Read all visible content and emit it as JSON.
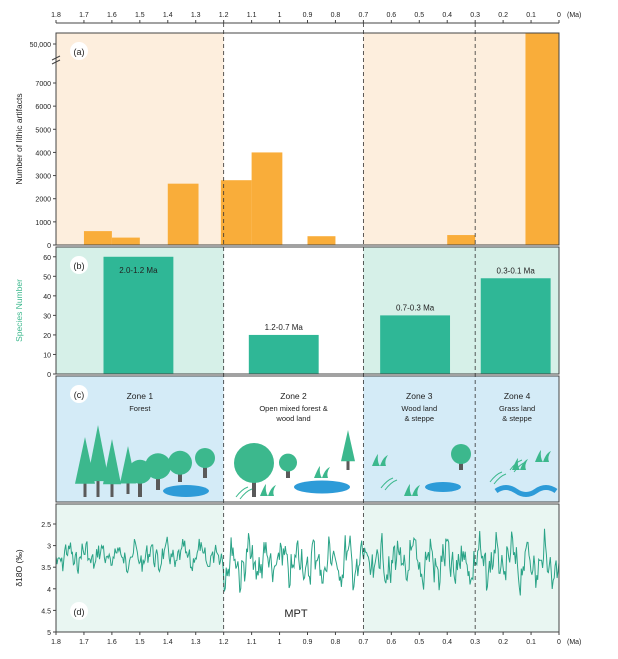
{
  "figure": {
    "x_axis": {
      "ticks": [
        "1.8",
        "1.7",
        "1.6",
        "1.5",
        "1.4",
        "1.3",
        "1.2",
        "1.1",
        "1",
        "0.9",
        "0.8",
        "0.7",
        "0.6",
        "0.5",
        "0.4",
        "0.3",
        "0.2",
        "0.1",
        "0"
      ],
      "unit": "(Ma)",
      "range": [
        1.8,
        0
      ]
    },
    "dashed_lines_ma": [
      1.2,
      0.7,
      0.3
    ],
    "colors": {
      "bar_orange": "#f9ad3a",
      "bg_peach": "#fdeedd",
      "teal": "#2fb796",
      "bg_mint": "#d6f0e8",
      "bg_sky": "#d4ebf7",
      "bg_pale": "#e9f6f2",
      "line_teal": "#2aa387",
      "tree_green": "#3cb88d",
      "tree_dark": "#5a5a5a",
      "water_blue": "#2d9bd8",
      "y_label_teal": "#3cb88d"
    }
  },
  "chart_data": [
    {
      "panel_label": "(a)",
      "type": "bar",
      "ylabel": "Number of lithic artifacts",
      "y_ticks": [
        "0",
        "1000",
        "2000",
        "3000",
        "4000",
        "5000",
        "6000",
        "7000",
        "50,000"
      ],
      "y_scale": "broken: linear 0-7000, break, top 50,000",
      "bars": [
        {
          "x_start": 1.7,
          "x_end": 1.6,
          "value": 600
        },
        {
          "x_start": 1.6,
          "x_end": 1.5,
          "value": 320
        },
        {
          "x_start": 1.4,
          "x_end": 1.29,
          "value": 2650
        },
        {
          "x_start": 1.21,
          "x_end": 1.1,
          "value": 2800
        },
        {
          "x_start": 1.1,
          "x_end": 0.99,
          "value": 4000
        },
        {
          "x_start": 0.9,
          "x_end": 0.8,
          "value": 380
        },
        {
          "x_start": 0.4,
          "x_end": 0.3,
          "value": 430
        },
        {
          "x_start": 0.12,
          "x_end": 0.0,
          "value": 50000
        }
      ],
      "background_bands": [
        {
          "from": 1.8,
          "to": 1.2,
          "color": "#fdeedd"
        },
        {
          "from": 0.7,
          "to": 0.0,
          "color": "#fdeedd"
        }
      ]
    },
    {
      "panel_label": "(b)",
      "type": "bar",
      "ylabel": "Species Number",
      "y_ticks": [
        "0",
        "10",
        "20",
        "30",
        "40",
        "50",
        "60"
      ],
      "ylim": [
        0,
        65
      ],
      "bars": [
        {
          "x_start": 1.63,
          "x_end": 1.38,
          "value": 60,
          "label": "2.0-1.2 Ma"
        },
        {
          "x_start": 1.11,
          "x_end": 0.86,
          "value": 20,
          "label": "1.2-0.7 Ma"
        },
        {
          "x_start": 0.64,
          "x_end": 0.39,
          "value": 30,
          "label": "0.7-0.3 Ma"
        },
        {
          "x_start": 0.28,
          "x_end": 0.03,
          "value": 49,
          "label": "0.3-0.1 Ma"
        }
      ],
      "background_bands": [
        {
          "from": 1.8,
          "to": 1.2,
          "color": "#d6f0e8"
        },
        {
          "from": 0.7,
          "to": 0.0,
          "color": "#d6f0e8"
        }
      ]
    },
    {
      "panel_label": "(d)",
      "type": "line",
      "ylabel": "δ18O (‰)",
      "y_ticks": [
        "2.5",
        "3",
        "3.5",
        "4",
        "4.5",
        "5"
      ],
      "ylim": [
        5,
        2.3
      ],
      "inverted": true,
      "annotation": "MPT",
      "series_note": "high-frequency benthic δ18O oscillations; amplitude increases after ~1.2 Ma"
    }
  ],
  "zones": {
    "panel_label": "(c)",
    "items": [
      {
        "title": "Zone 1",
        "desc": [
          "Forest"
        ],
        "from": 1.8,
        "to": 1.2,
        "bg": "#d4ebf7"
      },
      {
        "title": "Zone 2",
        "desc": [
          "Open mixed forest &",
          "wood land"
        ],
        "from": 1.2,
        "to": 0.7,
        "bg": "#ffffff"
      },
      {
        "title": "Zone 3",
        "desc": [
          "Wood land",
          "& steppe"
        ],
        "from": 0.7,
        "to": 0.3,
        "bg": "#d4ebf7"
      },
      {
        "title": "Zone 4",
        "desc": [
          "Grass land",
          "& steppe"
        ],
        "from": 0.3,
        "to": 0.0,
        "bg": "#d4ebf7"
      }
    ]
  }
}
